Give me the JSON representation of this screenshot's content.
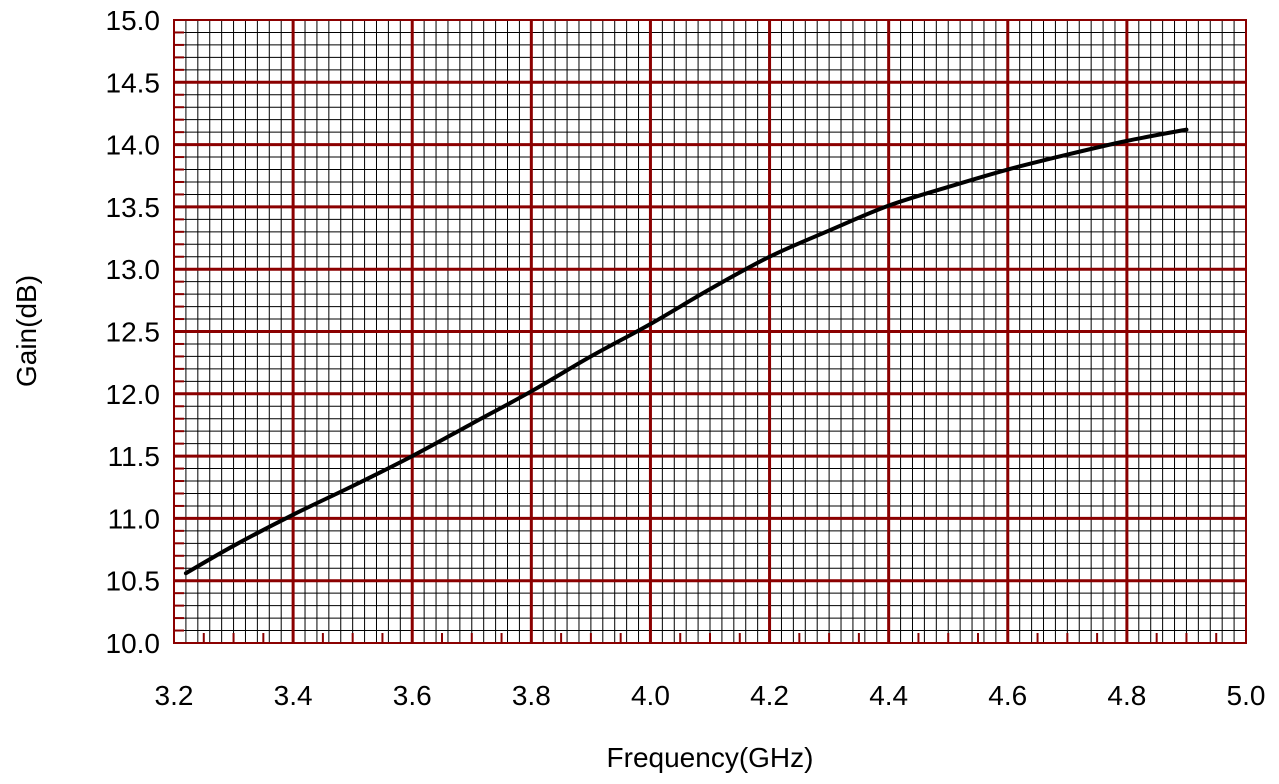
{
  "chart_data": {
    "type": "line",
    "title": "",
    "xlabel": "Frequency(GHz)",
    "ylabel": "Gain(dB)",
    "xlim": [
      3.2,
      5.0
    ],
    "ylim": [
      10.0,
      15.0
    ],
    "x_ticks": [
      "3.2",
      "3.4",
      "3.6",
      "3.8",
      "4.0",
      "4.2",
      "4.4",
      "4.6",
      "4.8",
      "5.0"
    ],
    "y_ticks": [
      "10.0",
      "10.5",
      "11.0",
      "11.5",
      "12.0",
      "12.5",
      "13.0",
      "13.5",
      "14.0",
      "14.5",
      "15.0"
    ],
    "grid": true,
    "legend": "none",
    "colors": {
      "major_grid": "#8b0000",
      "minor_grid": "#000000",
      "line": "#000000",
      "frame": "#8b0000"
    },
    "series": [
      {
        "x": [
          3.22,
          3.3,
          3.4,
          3.5,
          3.6,
          3.7,
          3.8,
          3.9,
          4.0,
          4.1,
          4.2,
          4.3,
          4.4,
          4.5,
          4.6,
          4.7,
          4.8,
          4.9
        ],
        "values": [
          10.56,
          10.78,
          11.03,
          11.26,
          11.5,
          11.76,
          12.02,
          12.3,
          12.56,
          12.84,
          13.1,
          13.31,
          13.51,
          13.66,
          13.8,
          13.92,
          14.03,
          14.12
        ]
      }
    ]
  }
}
